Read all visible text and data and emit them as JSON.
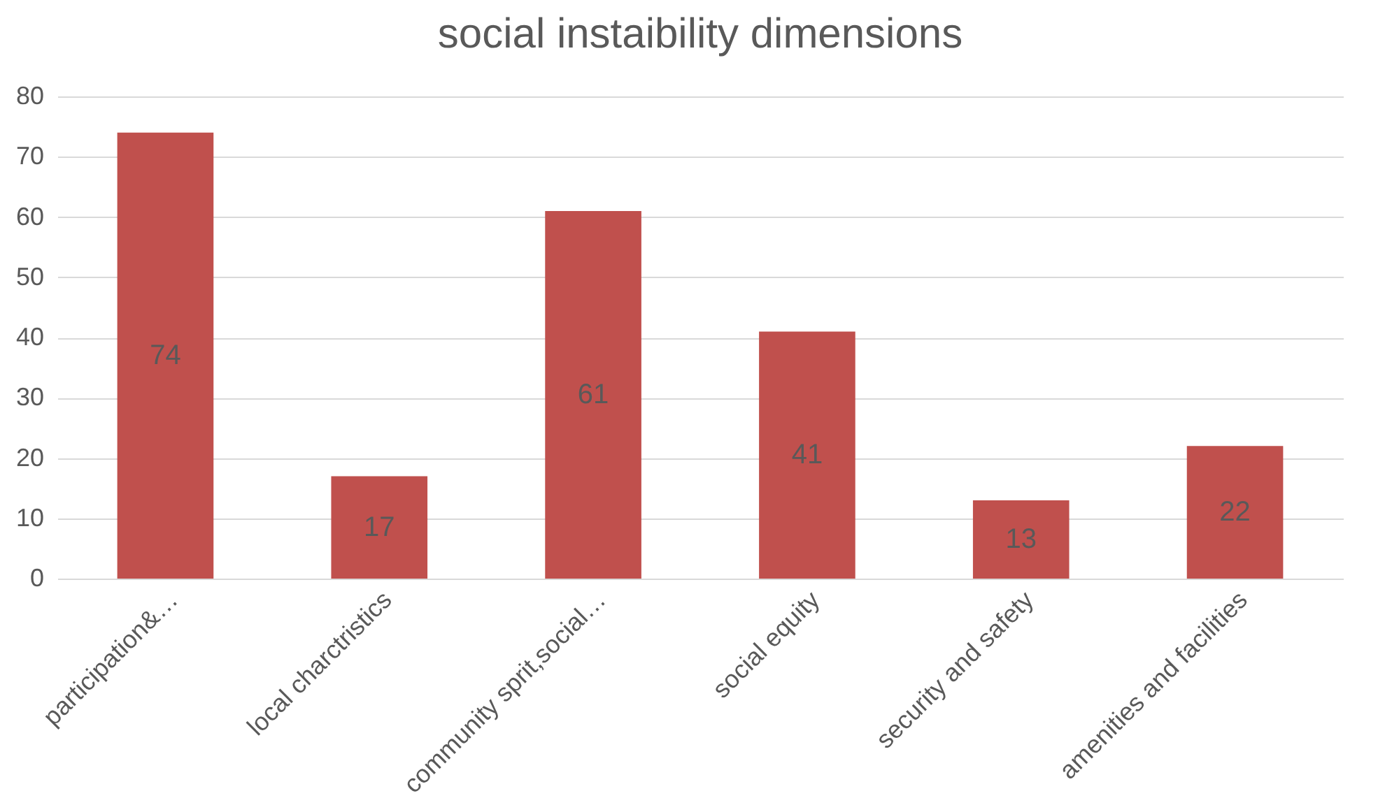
{
  "chart_data": {
    "type": "bar",
    "title": "social instaibility dimensions",
    "categories": [
      "participation&…",
      "local charctristics",
      "community sprit,social…",
      "social equity",
      "security and safety",
      "amenities and facilities"
    ],
    "values": [
      74,
      17,
      61,
      41,
      13,
      22
    ],
    "color": "#c0504d",
    "ylim": [
      0,
      80
    ],
    "yticks": [
      0,
      10,
      20,
      30,
      40,
      50,
      60,
      70,
      80
    ],
    "grid": "y",
    "data_labels": true
  }
}
